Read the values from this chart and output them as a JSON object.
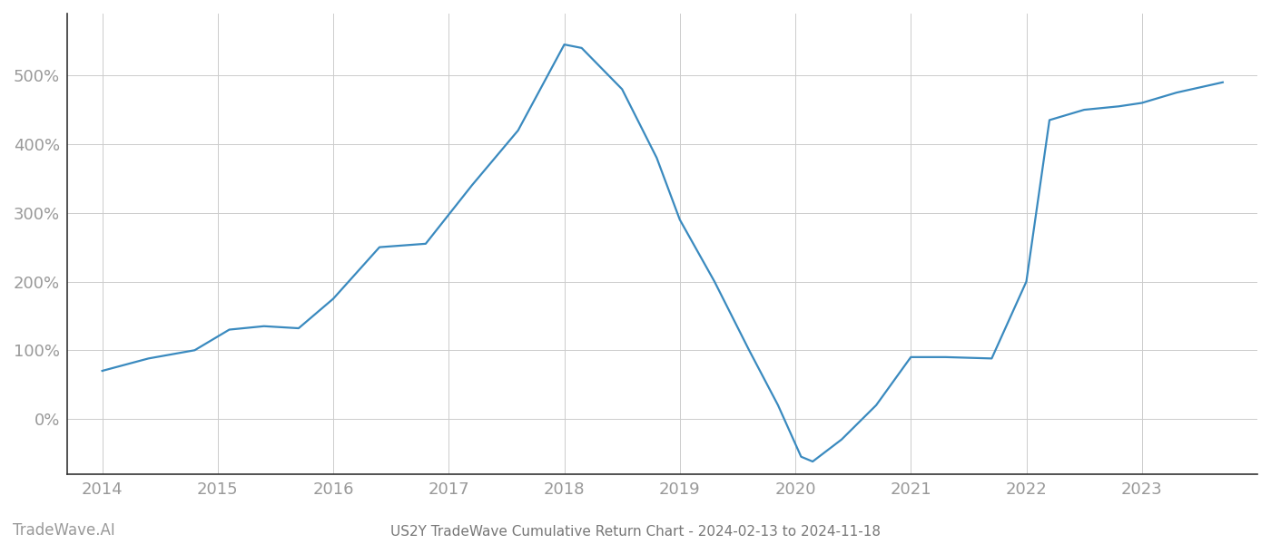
{
  "title": "US2Y TradeWave Cumulative Return Chart - 2024-02-13 to 2024-11-18",
  "watermark": "TradeWave.AI",
  "line_color": "#3a8abf",
  "background_color": "#ffffff",
  "grid_color": "#cccccc",
  "x_values": [
    2014.0,
    2014.4,
    2014.8,
    2015.1,
    2015.4,
    2015.7,
    2016.0,
    2016.4,
    2016.8,
    2017.2,
    2017.6,
    2018.0,
    2018.15,
    2018.5,
    2018.8,
    2019.0,
    2019.3,
    2019.6,
    2019.85,
    2020.05,
    2020.15,
    2020.4,
    2020.7,
    2021.0,
    2021.3,
    2021.7,
    2022.0,
    2022.2,
    2022.5,
    2022.8,
    2023.0,
    2023.3,
    2023.7
  ],
  "y_values": [
    70,
    88,
    100,
    130,
    135,
    132,
    175,
    250,
    255,
    340,
    420,
    545,
    540,
    480,
    380,
    290,
    200,
    100,
    20,
    -55,
    -62,
    -30,
    20,
    90,
    90,
    88,
    200,
    435,
    450,
    455,
    460,
    475,
    490
  ],
  "yticks": [
    0,
    100,
    200,
    300,
    400,
    500
  ],
  "ytick_labels": [
    "0%",
    "100%",
    "200%",
    "300%",
    "400%",
    "500%"
  ],
  "xticks": [
    2014,
    2015,
    2016,
    2017,
    2018,
    2019,
    2020,
    2021,
    2022,
    2023
  ],
  "xtick_labels": [
    "2014",
    "2015",
    "2016",
    "2017",
    "2018",
    "2019",
    "2020",
    "2021",
    "2022",
    "2023"
  ],
  "xlim": [
    2013.7,
    2024.0
  ],
  "ylim": [
    -80,
    590
  ],
  "line_width": 1.6,
  "title_fontsize": 11,
  "tick_fontsize": 13,
  "watermark_fontsize": 12,
  "title_color": "#777777",
  "tick_color": "#999999",
  "spine_color": "#333333"
}
